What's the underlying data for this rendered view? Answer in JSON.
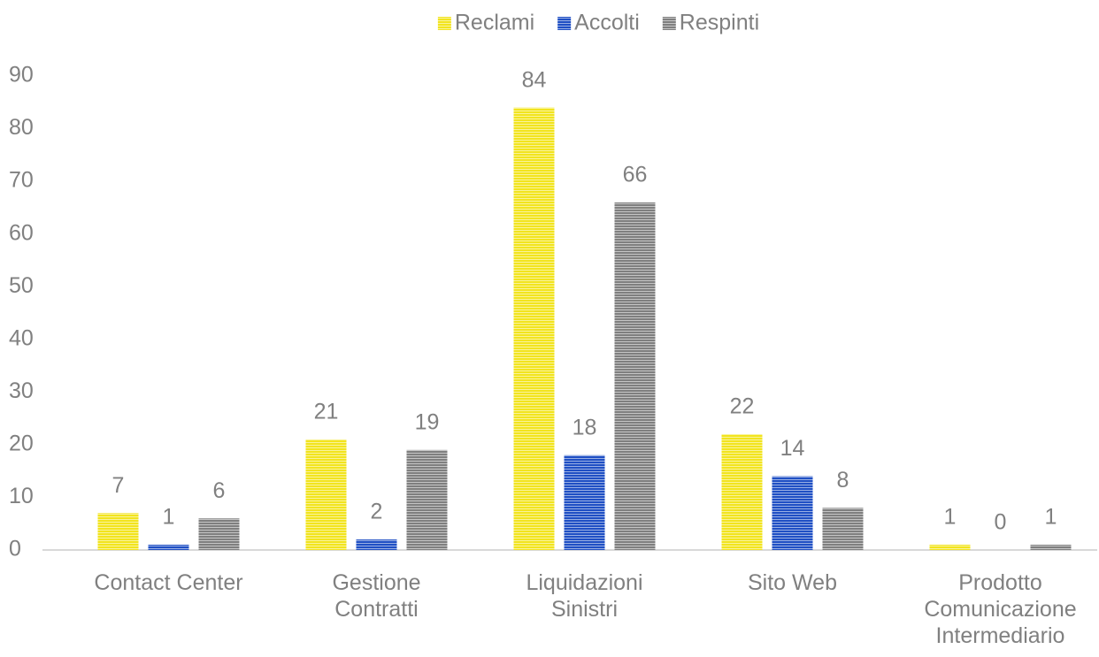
{
  "chart_data": {
    "type": "bar",
    "categories": [
      "Contact Center",
      "Gestione\nContratti",
      "Liquidazioni\nSinistri",
      "Sito Web",
      "Prodotto\nComunicazione\nIntermediario"
    ],
    "series": [
      {
        "name": "Reclami",
        "color": "#f2e41e",
        "values": [
          7,
          21,
          84,
          22,
          1
        ]
      },
      {
        "name": "Accolti",
        "color": "#1f4fc4",
        "values": [
          1,
          2,
          18,
          14,
          0
        ]
      },
      {
        "name": "Respinti",
        "color": "#7f7f7f",
        "values": [
          6,
          19,
          66,
          8,
          1
        ]
      }
    ],
    "ylim": [
      0,
      90
    ],
    "yticks": [
      0,
      10,
      20,
      30,
      40,
      50,
      60,
      70,
      80,
      90
    ],
    "grid": false,
    "legend": "top",
    "value_labels_shown": true
  }
}
